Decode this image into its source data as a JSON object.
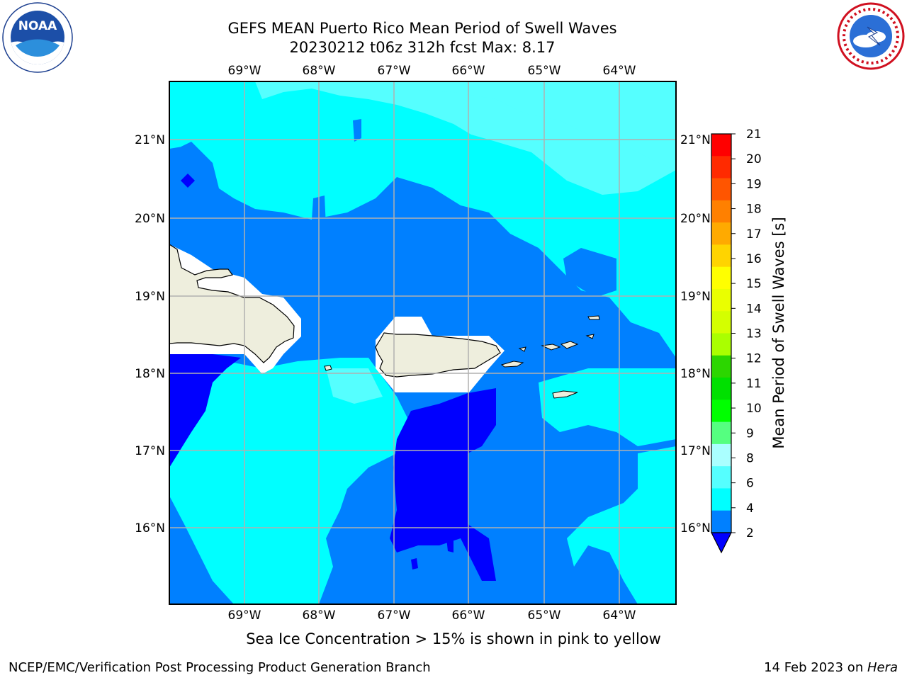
{
  "header": {
    "title_line1": "GEFS MEAN Puerto Rico Mean Period of Swell Waves",
    "title_line2": "20230212 t06z 312h fcst   Max: 8.17"
  },
  "logos": {
    "left": {
      "text": "NOAA",
      "ring_text": "NATIONAL OCEANIC AND ATMOSPHERIC ADMINISTRATION · U.S. DEPARTMENT OF COMMERCE",
      "icon": "noaa-logo"
    },
    "right": {
      "ring_text": "NATIONAL WEATHER SERVICE",
      "icon": "nws-logo"
    }
  },
  "map": {
    "lon_ticks": [
      "69°W",
      "68°W",
      "67°W",
      "66°W",
      "65°W",
      "64°W"
    ],
    "lat_ticks": [
      "21°N",
      "20°N",
      "19°N",
      "18°N",
      "17°N",
      "16°N"
    ],
    "colors": {
      "swell_2_4": "#0000ff",
      "swell_4_6": "#0080ff",
      "swell_6_8": "#00ffff",
      "swell_8_9": "#55ffff",
      "land": "#eeeedd",
      "land_mask": "#ffffff",
      "grid": "#b0b0b0"
    }
  },
  "colorbar": {
    "label": "Mean Period of Swell Waves [s]",
    "ticks": [
      "21",
      "20",
      "19",
      "18",
      "17",
      "16",
      "15",
      "14",
      "13",
      "12",
      "11",
      "10",
      "9",
      "8",
      "6",
      "4",
      "2"
    ],
    "colors": [
      "#ff0000",
      "#ff2a00",
      "#ff5500",
      "#ff8000",
      "#ffaa00",
      "#ffd400",
      "#ffff00",
      "#eaff00",
      "#d4ff00",
      "#aaff00",
      "#2cd600",
      "#00e000",
      "#00ff00",
      "#55ff80",
      "#aaffff",
      "#55ffff",
      "#00ffff",
      "#0080ff",
      "#0000ff"
    ]
  },
  "notes": {
    "sea_ice": "Sea Ice Concentration > 15% is shown in pink to yellow",
    "branch": "NCEP/EMC/Verification Post Processing Product Generation Branch",
    "date_prefix": "14 Feb 2023 on ",
    "date_host": "Hera"
  }
}
